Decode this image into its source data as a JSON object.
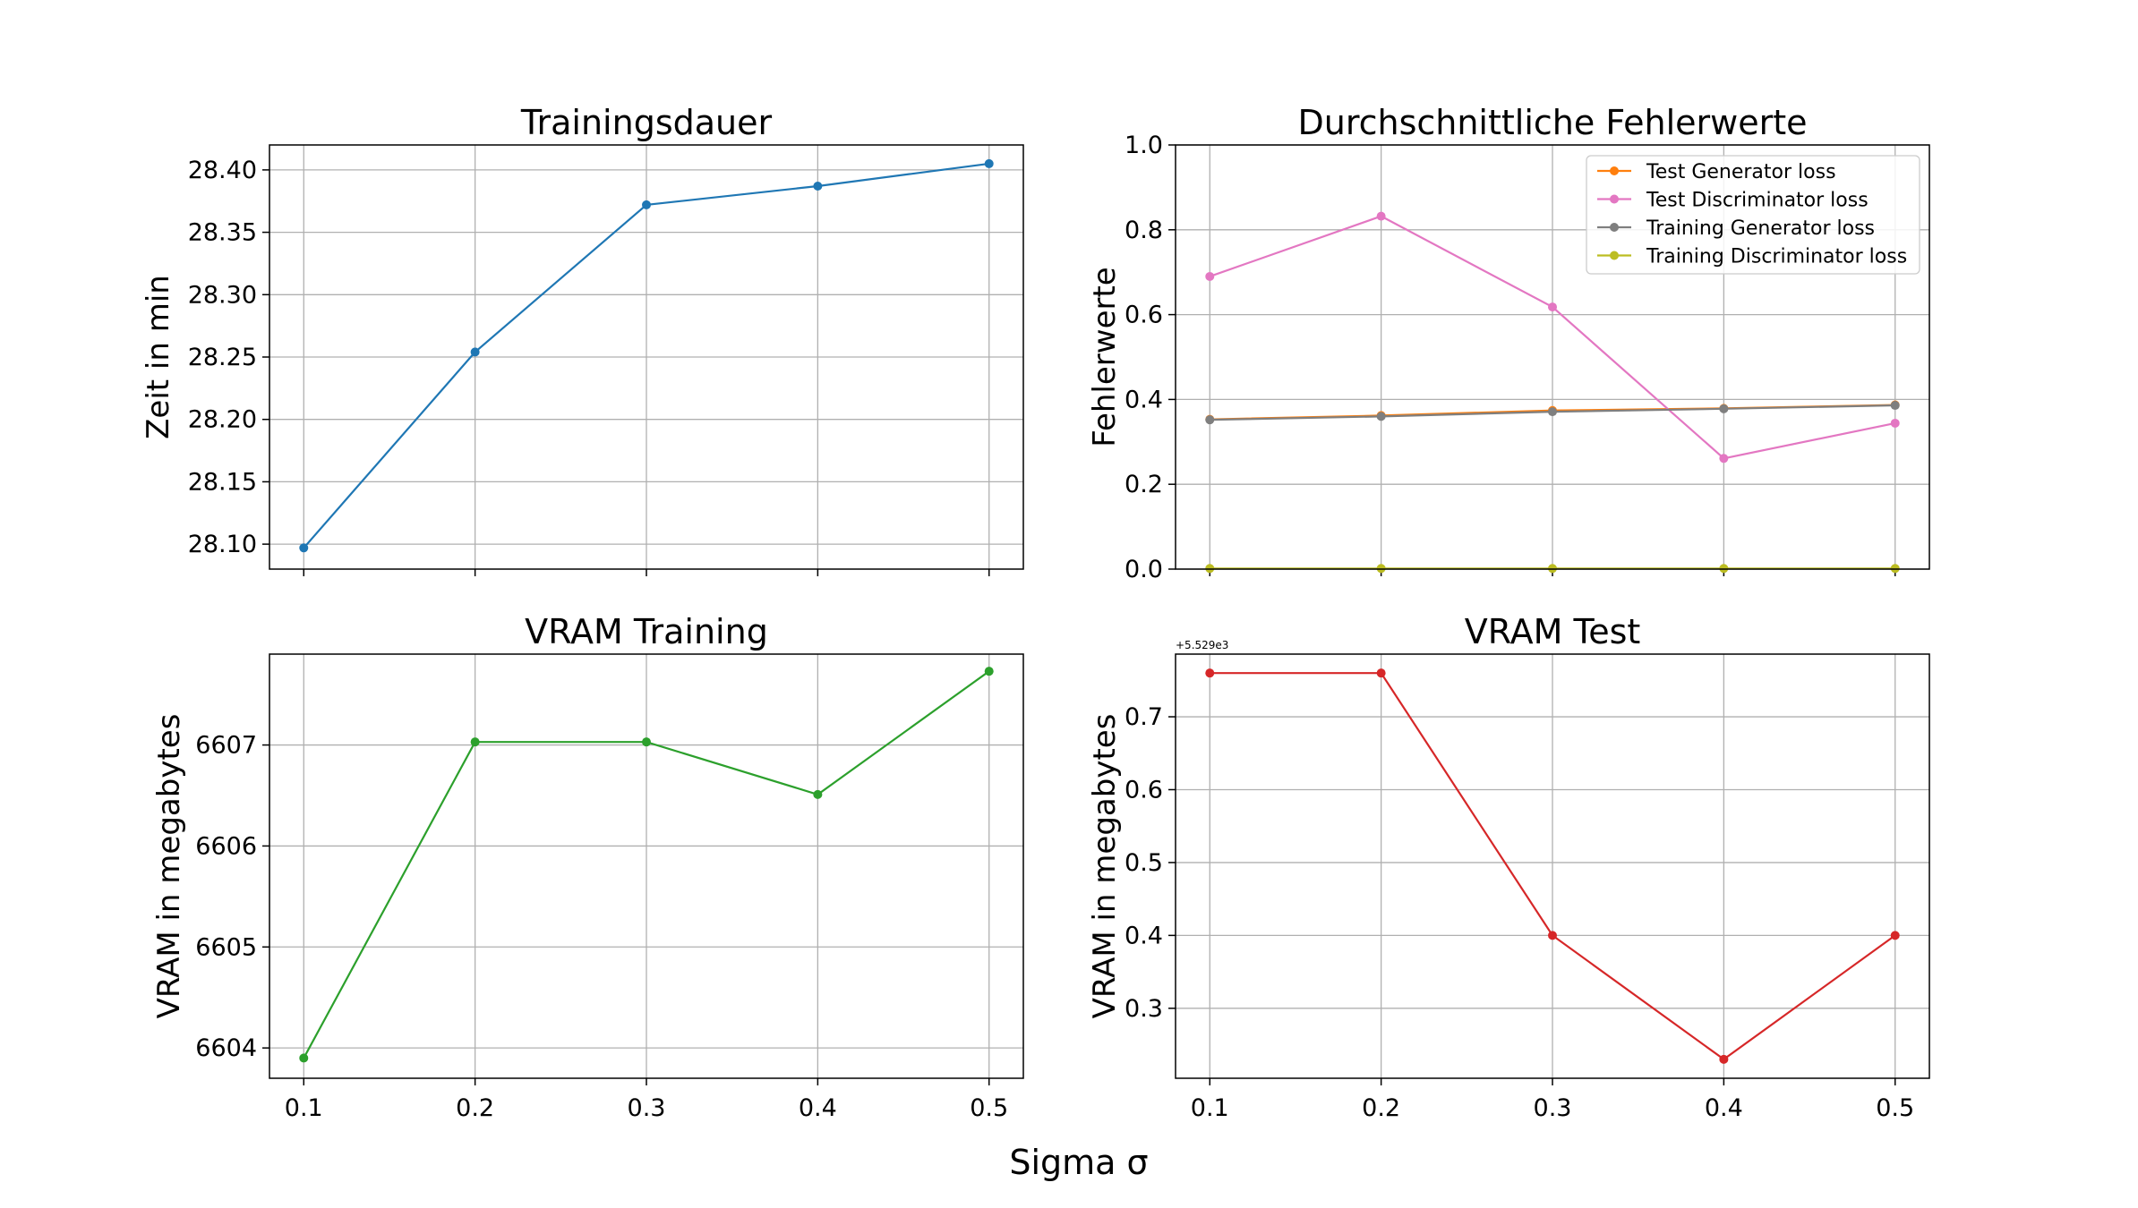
{
  "figure": {
    "supxlabel": "Sigma σ"
  },
  "chart_data": [
    {
      "type": "line",
      "title": "Trainingsdauer",
      "xlabel": "",
      "ylabel": "Zeit in min",
      "x": [
        0.1,
        0.2,
        0.3,
        0.4,
        0.5
      ],
      "xticks": [
        "0.1",
        "0.2",
        "0.3",
        "0.4",
        "0.5"
      ],
      "show_xticklabels": false,
      "ylim": [
        28.08,
        28.42
      ],
      "yticks": [
        28.1,
        28.15,
        28.2,
        28.25,
        28.3,
        28.35,
        28.4
      ],
      "ytick_labels": [
        "28.10",
        "28.15",
        "28.20",
        "28.25",
        "28.30",
        "28.35",
        "28.40"
      ],
      "ytick_offset": "",
      "grid": true,
      "series": [
        {
          "name": "",
          "color": "#1f77b4",
          "values": [
            28.097,
            28.254,
            28.372,
            28.387,
            28.405
          ]
        }
      ]
    },
    {
      "type": "line",
      "title": "Durchschnittliche Fehlerwerte",
      "xlabel": "",
      "ylabel": "Fehlerwerte",
      "x": [
        0.1,
        0.2,
        0.3,
        0.4,
        0.5
      ],
      "xticks": [
        "0.1",
        "0.2",
        "0.3",
        "0.4",
        "0.5"
      ],
      "show_xticklabels": false,
      "ylim": [
        0.0,
        1.0
      ],
      "yticks": [
        0.0,
        0.2,
        0.4,
        0.6,
        0.8,
        1.0
      ],
      "ytick_labels": [
        "0.0",
        "0.2",
        "0.4",
        "0.6",
        "0.8",
        "1.0"
      ],
      "ytick_offset": "",
      "grid": true,
      "legend": "top-right",
      "series": [
        {
          "name": "Test Generator loss",
          "color": "#ff7f0e",
          "values": [
            0.353,
            0.362,
            0.374,
            0.379,
            0.387
          ]
        },
        {
          "name": "Test Discriminator loss",
          "color": "#e377c2",
          "values": [
            0.69,
            0.832,
            0.618,
            0.261,
            0.344
          ]
        },
        {
          "name": "Training Generator loss",
          "color": "#7f7f7f",
          "values": [
            0.352,
            0.36,
            0.371,
            0.378,
            0.386
          ]
        },
        {
          "name": "Training Discriminator loss",
          "color": "#bcbd22",
          "values": [
            0.0015,
            0.0015,
            0.0015,
            0.0015,
            0.0015
          ]
        }
      ]
    },
    {
      "type": "line",
      "title": "VRAM Training",
      "xlabel": "",
      "ylabel": "VRAM in megabytes",
      "x": [
        0.1,
        0.2,
        0.3,
        0.4,
        0.5
      ],
      "xticks": [
        "0.1",
        "0.2",
        "0.3",
        "0.4",
        "0.5"
      ],
      "show_xticklabels": true,
      "ylim": [
        6603.7,
        6607.9
      ],
      "yticks": [
        6604,
        6605,
        6606,
        6607
      ],
      "ytick_labels": [
        "6604",
        "6605",
        "6606",
        "6607"
      ],
      "ytick_offset": "",
      "grid": true,
      "series": [
        {
          "name": "",
          "color": "#2ca02c",
          "values": [
            6603.9,
            6607.03,
            6607.03,
            6606.51,
            6607.73
          ]
        }
      ]
    },
    {
      "type": "line",
      "title": "VRAM Test",
      "xlabel": "",
      "ylabel": "VRAM in megabytes",
      "x": [
        0.1,
        0.2,
        0.3,
        0.4,
        0.5
      ],
      "xticks": [
        "0.1",
        "0.2",
        "0.3",
        "0.4",
        "0.5"
      ],
      "show_xticklabels": true,
      "ylim": [
        0.204,
        0.786
      ],
      "yticks": [
        0.3,
        0.4,
        0.5,
        0.6,
        0.7
      ],
      "ytick_labels": [
        "0.3",
        "0.4",
        "0.5",
        "0.6",
        "0.7"
      ],
      "ytick_offset": "+5.529e3",
      "grid": true,
      "series": [
        {
          "name": "",
          "color": "#d62728",
          "values": [
            0.76,
            0.76,
            0.4,
            0.23,
            0.4
          ]
        }
      ]
    }
  ]
}
